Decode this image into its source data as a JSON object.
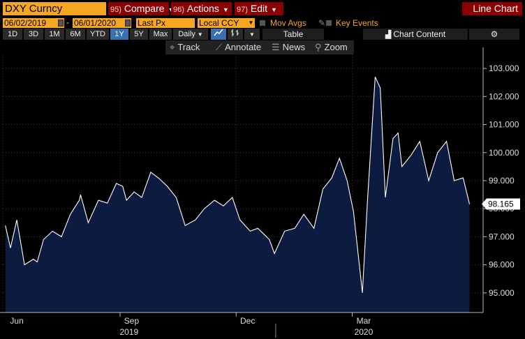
{
  "header": {
    "ticker": "DXY Curncy",
    "compare_num": "95)",
    "compare_label": "Compare",
    "actions_num": "96)",
    "actions_label": "Actions",
    "edit_num": "97)",
    "edit_label": "Edit",
    "chart_type": "Line Chart"
  },
  "controls": {
    "start_date": "06/02/2019",
    "end_date": "06/01/2020",
    "field": "Last Px",
    "currency": "Local CCY",
    "mov_avgs": "Mov Avgs",
    "key_events": "Key Events"
  },
  "toolbar": {
    "ranges": [
      "1D",
      "3D",
      "1M",
      "6M",
      "YTD",
      "1Y",
      "5Y",
      "Max"
    ],
    "active_range": "1Y",
    "frequency": "Daily",
    "table_label": "Table",
    "chart_content_label": "Chart Content"
  },
  "tools": {
    "track": "Track",
    "annotate": "Annotate",
    "news": "News",
    "zoom": "Zoom"
  },
  "colors": {
    "accent_orange": "#f5a623",
    "menu_red": "#8b0000",
    "area_fill": "#0d1b40",
    "line": "#ffffff",
    "active_btn": "#3a6fb0"
  },
  "chart_data": {
    "type": "area",
    "last_value": 98.165,
    "last_value_label": "98.165",
    "ylim": [
      94.3,
      103.5
    ],
    "yticks": [
      95,
      96,
      97,
      98,
      99,
      100,
      101,
      102,
      103
    ],
    "ytick_labels": [
      "95.000",
      "96.000",
      "97.000",
      "98.000",
      "99.000",
      "100.000",
      "101.000",
      "102.000",
      "103.000"
    ],
    "xlabels_month": [
      "Jun",
      "Sep",
      "Dec",
      "Mar"
    ],
    "xlabels_year": [
      "2019",
      "2020"
    ],
    "series": [
      {
        "x": [
          "2019-06-03",
          "2019-06-07",
          "2019-06-12",
          "2019-06-18",
          "2019-06-25",
          "2019-06-28",
          "2019-07-03",
          "2019-07-10",
          "2019-07-17",
          "2019-07-24",
          "2019-07-31",
          "2019-08-01",
          "2019-08-07",
          "2019-08-15",
          "2019-08-22",
          "2019-08-29",
          "2019-09-03",
          "2019-09-06",
          "2019-09-12",
          "2019-09-18",
          "2019-09-25",
          "2019-10-01",
          "2019-10-08",
          "2019-10-15",
          "2019-10-22",
          "2019-10-30",
          "2019-11-06",
          "2019-11-14",
          "2019-11-21",
          "2019-11-28",
          "2019-12-04",
          "2019-12-12",
          "2019-12-18",
          "2019-12-27",
          "2019-12-31",
          "2020-01-08",
          "2020-01-16",
          "2020-01-23",
          "2020-01-31",
          "2020-02-07",
          "2020-02-14",
          "2020-02-20",
          "2020-02-26",
          "2020-03-02",
          "2020-03-09",
          "2020-03-13",
          "2020-03-19",
          "2020-03-23",
          "2020-03-27",
          "2020-04-02",
          "2020-04-06",
          "2020-04-09",
          "2020-04-16",
          "2020-04-23",
          "2020-04-30",
          "2020-05-07",
          "2020-05-14",
          "2020-05-20",
          "2020-05-27",
          "2020-06-01"
        ],
        "y": [
          97.4,
          96.6,
          97.6,
          96.0,
          96.2,
          96.1,
          96.9,
          97.2,
          97.0,
          97.8,
          98.3,
          98.5,
          97.5,
          98.3,
          98.2,
          98.9,
          98.8,
          98.3,
          98.6,
          98.4,
          99.3,
          99.1,
          98.8,
          98.4,
          97.4,
          97.6,
          98.0,
          98.3,
          98.1,
          98.4,
          97.6,
          97.2,
          97.3,
          96.9,
          96.4,
          97.2,
          97.3,
          97.8,
          97.3,
          98.7,
          99.1,
          99.8,
          99.0,
          97.9,
          95.0,
          98.3,
          102.7,
          102.3,
          98.4,
          100.5,
          100.7,
          99.5,
          99.9,
          100.4,
          99.0,
          100.0,
          100.4,
          99.0,
          99.1,
          98.165
        ]
      }
    ]
  }
}
